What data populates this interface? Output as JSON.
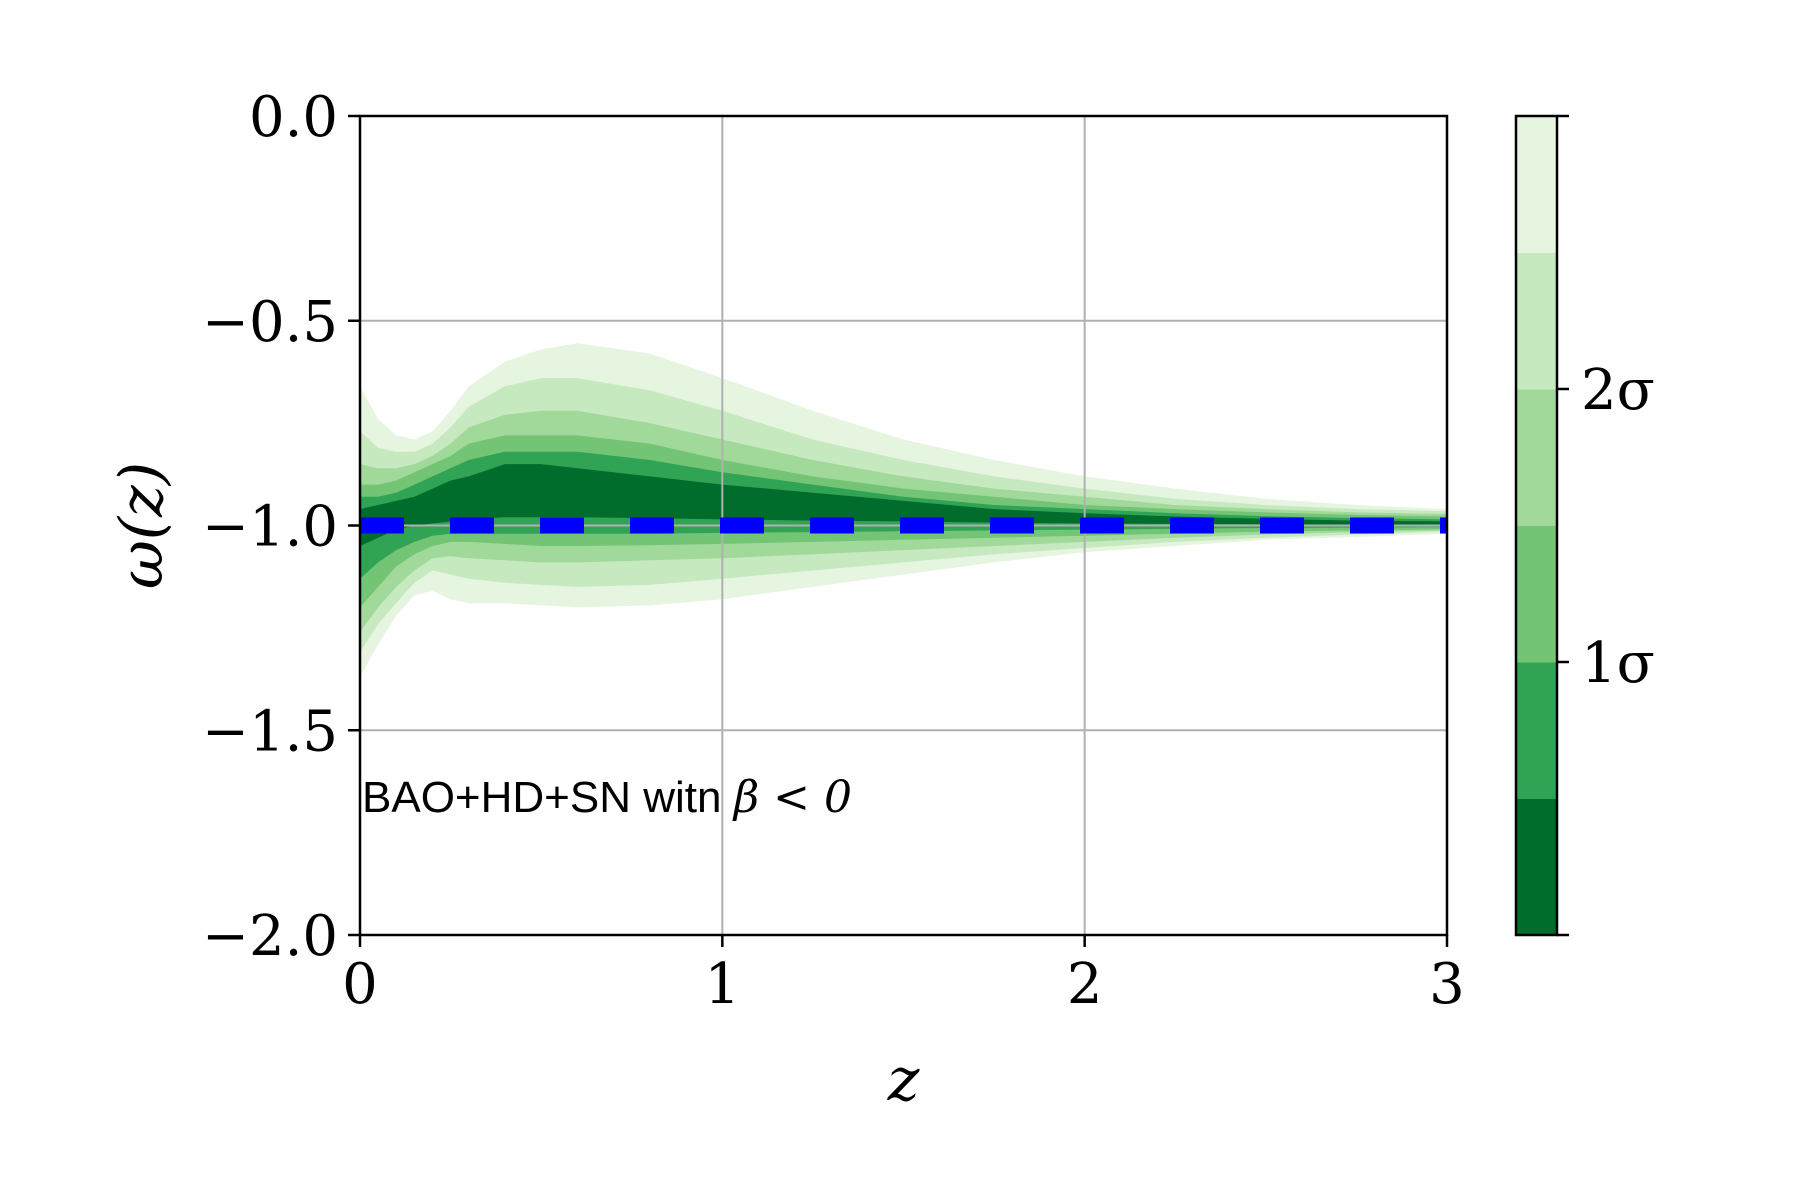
{
  "chart_data": {
    "type": "area",
    "xlabel": "z",
    "ylabel": "ω(z)",
    "xlim": [
      0,
      3
    ],
    "ylim": [
      -2.0,
      0.0
    ],
    "xticks": [
      0,
      1,
      2,
      3
    ],
    "xtick_labels": [
      "0",
      "1",
      "2",
      "3"
    ],
    "yticks": [
      0.0,
      -0.5,
      -1.0,
      -1.5,
      -2.0
    ],
    "ytick_labels": [
      "0.0",
      "−0.5",
      "−1.0",
      "−1.5",
      "−2.0"
    ],
    "grid": true,
    "annotation": {
      "text": "BAO+HD+SN witn ",
      "math": "β < 0"
    },
    "reference_line": {
      "y": -1.0,
      "style": "dashed",
      "color": "#0000ff"
    },
    "x": [
      0,
      0.05,
      0.1,
      0.15,
      0.2,
      0.25,
      0.3,
      0.4,
      0.5,
      0.6,
      0.8,
      1.0,
      1.25,
      1.5,
      1.75,
      2.0,
      2.25,
      2.5,
      2.75,
      3.0
    ],
    "bands": [
      {
        "level": 1,
        "color": "#e5f5e0",
        "upper": [
          -0.66,
          -0.74,
          -0.78,
          -0.79,
          -0.77,
          -0.72,
          -0.66,
          -0.6,
          -0.57,
          -0.555,
          -0.58,
          -0.64,
          -0.72,
          -0.79,
          -0.84,
          -0.88,
          -0.91,
          -0.935,
          -0.95,
          -0.96
        ],
        "lower": [
          -1.37,
          -1.29,
          -1.22,
          -1.17,
          -1.16,
          -1.18,
          -1.19,
          -1.19,
          -1.195,
          -1.2,
          -1.195,
          -1.18,
          -1.15,
          -1.12,
          -1.09,
          -1.065,
          -1.05,
          -1.035,
          -1.028,
          -1.02
        ]
      },
      {
        "level": 2,
        "color": "#c7e9c0",
        "upper": [
          -0.77,
          -0.81,
          -0.82,
          -0.82,
          -0.8,
          -0.76,
          -0.71,
          -0.66,
          -0.64,
          -0.64,
          -0.67,
          -0.72,
          -0.79,
          -0.84,
          -0.88,
          -0.91,
          -0.935,
          -0.95,
          -0.96,
          -0.965
        ],
        "lower": [
          -1.31,
          -1.24,
          -1.19,
          -1.14,
          -1.11,
          -1.12,
          -1.13,
          -1.14,
          -1.145,
          -1.15,
          -1.145,
          -1.13,
          -1.11,
          -1.09,
          -1.07,
          -1.055,
          -1.04,
          -1.03,
          -1.022,
          -1.015
        ]
      },
      {
        "level": 3,
        "color": "#a1d99b",
        "upper": [
          -0.85,
          -0.86,
          -0.86,
          -0.85,
          -0.83,
          -0.8,
          -0.76,
          -0.73,
          -0.72,
          -0.72,
          -0.75,
          -0.79,
          -0.84,
          -0.88,
          -0.91,
          -0.93,
          -0.95,
          -0.96,
          -0.968,
          -0.972
        ],
        "lower": [
          -1.26,
          -1.2,
          -1.15,
          -1.11,
          -1.08,
          -1.075,
          -1.08,
          -1.085,
          -1.09,
          -1.09,
          -1.085,
          -1.08,
          -1.07,
          -1.06,
          -1.05,
          -1.04,
          -1.03,
          -1.022,
          -1.016,
          -1.012
        ]
      },
      {
        "level": 4,
        "color": "#74c476",
        "upper": [
          -0.9,
          -0.9,
          -0.89,
          -0.87,
          -0.85,
          -0.83,
          -0.8,
          -0.78,
          -0.78,
          -0.78,
          -0.8,
          -0.84,
          -0.88,
          -0.91,
          -0.93,
          -0.95,
          -0.96,
          -0.968,
          -0.974,
          -0.978
        ],
        "lower": [
          -1.2,
          -1.15,
          -1.1,
          -1.07,
          -1.05,
          -1.04,
          -1.04,
          -1.045,
          -1.05,
          -1.05,
          -1.048,
          -1.045,
          -1.04,
          -1.035,
          -1.03,
          -1.025,
          -1.02,
          -1.015,
          -1.012,
          -1.009
        ]
      },
      {
        "level": 5,
        "color": "#31a354",
        "upper": [
          -0.93,
          -0.93,
          -0.92,
          -0.9,
          -0.88,
          -0.86,
          -0.84,
          -0.82,
          -0.82,
          -0.82,
          -0.84,
          -0.87,
          -0.9,
          -0.93,
          -0.95,
          -0.96,
          -0.97,
          -0.977,
          -0.982,
          -0.985
        ],
        "lower": [
          -1.13,
          -1.09,
          -1.06,
          -1.04,
          -1.025,
          -1.02,
          -1.02,
          -1.02,
          -1.02,
          -1.02,
          -1.02,
          -1.018,
          -1.016,
          -1.014,
          -1.012,
          -1.01,
          -1.008,
          -1.006,
          -1.005,
          -1.004
        ]
      },
      {
        "level": 6,
        "color": "#006d2c",
        "upper": [
          -0.96,
          -0.95,
          -0.94,
          -0.93,
          -0.91,
          -0.89,
          -0.88,
          -0.85,
          -0.85,
          -0.86,
          -0.88,
          -0.9,
          -0.92,
          -0.94,
          -0.96,
          -0.97,
          -0.978,
          -0.984,
          -0.988,
          -0.99
        ],
        "lower": [
          -1.05,
          -1.03,
          -1.01,
          -1.0,
          -0.995,
          -0.99,
          -0.985,
          -0.98,
          -0.98,
          -0.98,
          -0.982,
          -0.985,
          -0.988,
          -0.99,
          -0.993,
          -0.995,
          -0.996,
          -0.997,
          -0.998,
          -0.999
        ]
      }
    ],
    "colorbar": {
      "colors": [
        "#006d2c",
        "#31a354",
        "#74c476",
        "#a1d99b",
        "#c7e9c0",
        "#e5f5e0"
      ],
      "labels": [
        "1σ",
        "2σ"
      ],
      "label_positions": [
        2,
        4
      ]
    }
  }
}
